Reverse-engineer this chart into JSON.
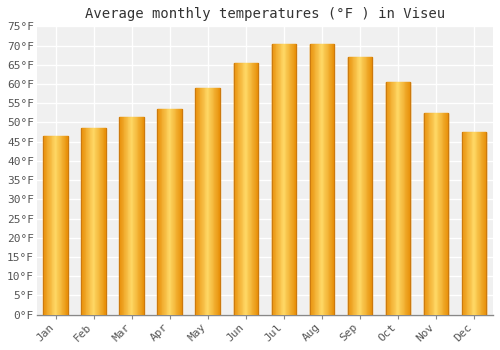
{
  "title": "Average monthly temperatures (°F ) in Viseu",
  "months": [
    "Jan",
    "Feb",
    "Mar",
    "Apr",
    "May",
    "Jun",
    "Jul",
    "Aug",
    "Sep",
    "Oct",
    "Nov",
    "Dec"
  ],
  "values": [
    46.5,
    48.5,
    51.5,
    53.5,
    59.0,
    65.5,
    70.5,
    70.5,
    67.0,
    60.5,
    52.5,
    47.5
  ],
  "bar_color_center": "#FFD966",
  "bar_color_edge": "#E8900A",
  "ylim": [
    0,
    75
  ],
  "yticks": [
    0,
    5,
    10,
    15,
    20,
    25,
    30,
    35,
    40,
    45,
    50,
    55,
    60,
    65,
    70,
    75
  ],
  "background_color": "#ffffff",
  "plot_bg_color": "#f0f0f0",
  "grid_color": "#ffffff",
  "title_fontsize": 10,
  "tick_fontsize": 8,
  "font_family": "monospace"
}
